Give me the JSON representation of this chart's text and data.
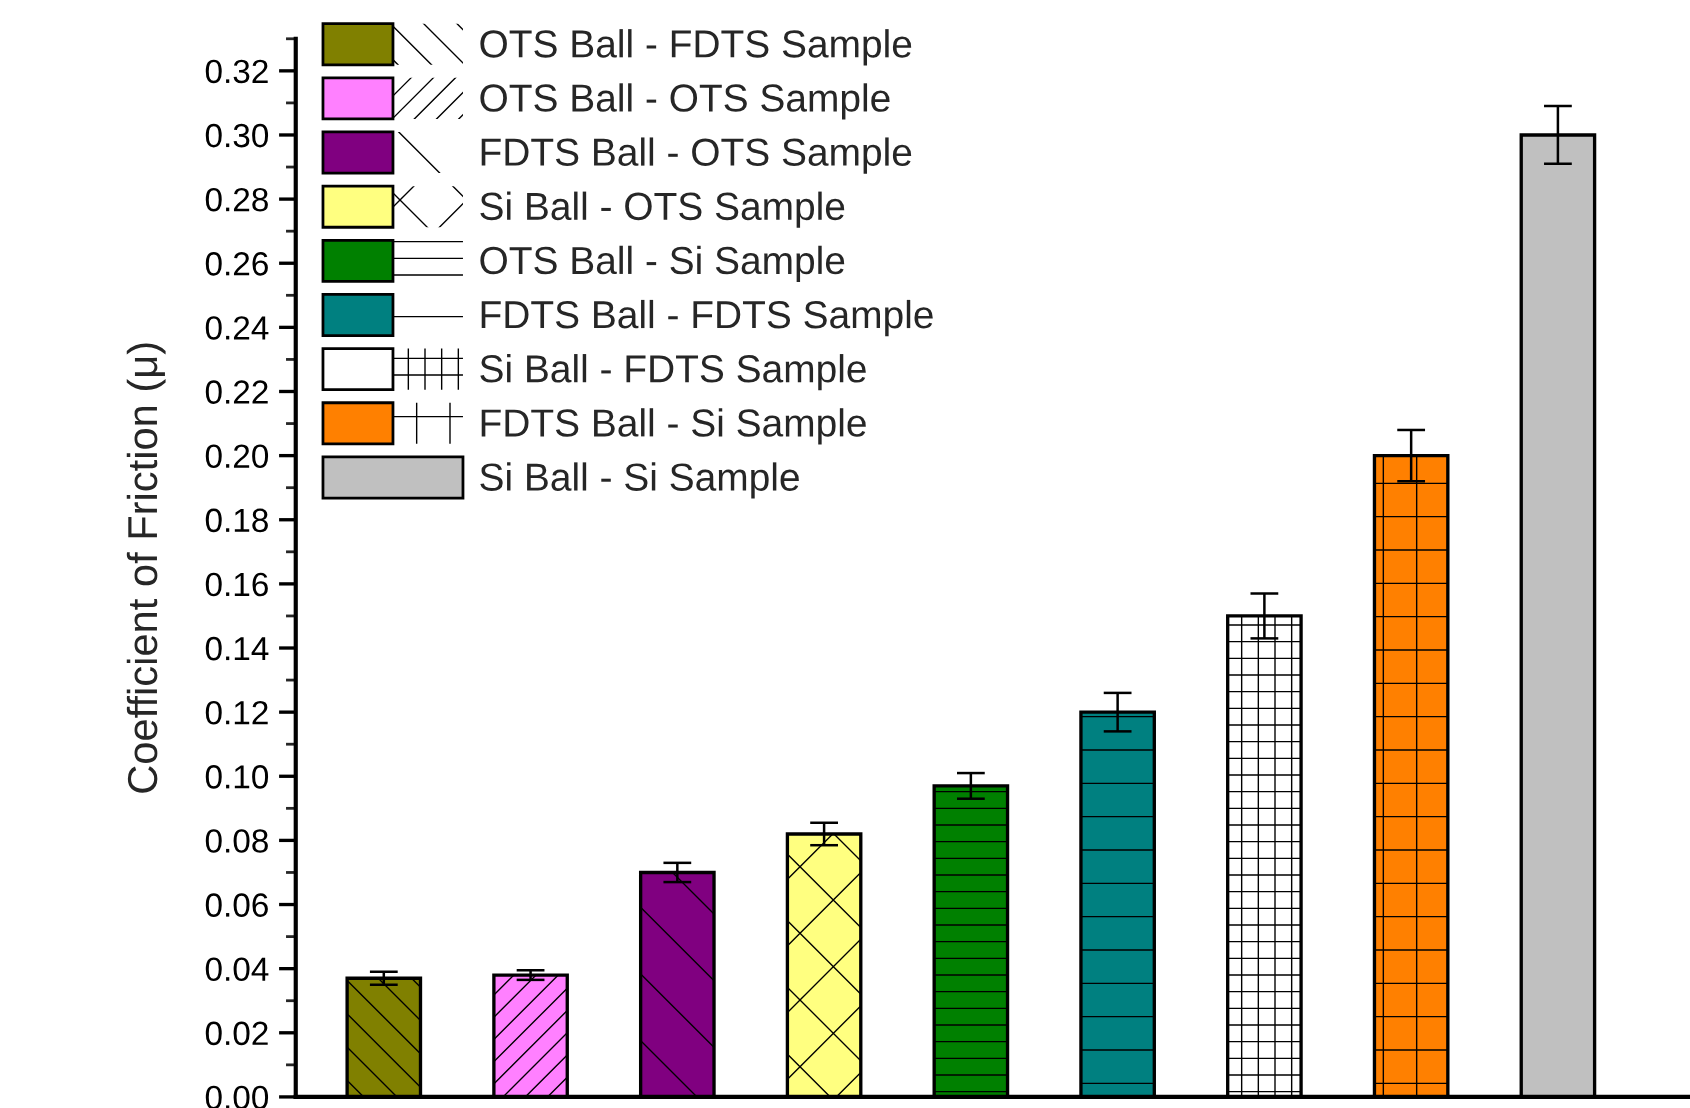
{
  "chart_data": {
    "type": "bar",
    "ylabel": "Coefficient of Friction (μ)",
    "categories": [
      null,
      null,
      null,
      null,
      null,
      null,
      null,
      null,
      null
    ],
    "series": [
      {
        "name": "OTS Ball - FDTS Sample",
        "color": "#808000",
        "values": [
          0.037,
          null,
          null,
          null,
          null,
          null,
          null,
          null,
          null
        ],
        "errors": [
          0.002,
          null,
          null,
          null,
          null,
          null,
          null,
          null,
          null
        ]
      },
      {
        "name": "OTS Ball - OTS Sample",
        "color": "#ff80ff",
        "values": [
          null,
          0.038,
          null,
          null,
          null,
          null,
          null,
          null,
          null
        ],
        "errors": [
          null,
          0.0015,
          null,
          null,
          null,
          null,
          null,
          null,
          null
        ]
      },
      {
        "name": "FDTS Ball - OTS Sample",
        "color": "#800080",
        "values": [
          null,
          null,
          0.07,
          null,
          null,
          null,
          null,
          null,
          null
        ],
        "errors": [
          null,
          null,
          0.003,
          null,
          null,
          null,
          null,
          null,
          null
        ]
      },
      {
        "name": "Si Ball - OTS Sample",
        "color": "#ffff80",
        "values": [
          null,
          null,
          null,
          0.082,
          null,
          null,
          null,
          null,
          null
        ],
        "errors": [
          null,
          null,
          null,
          0.0035,
          null,
          null,
          null,
          null,
          null
        ]
      },
      {
        "name": "OTS Ball - Si Sample",
        "color": "#008000",
        "values": [
          null,
          null,
          null,
          null,
          0.097,
          null,
          null,
          null,
          null
        ],
        "errors": [
          null,
          null,
          null,
          null,
          0.004,
          null,
          null,
          null,
          null
        ]
      },
      {
        "name": "FDTS Ball - FDTS Sample",
        "color": "#008080",
        "values": [
          null,
          null,
          null,
          null,
          null,
          0.12,
          null,
          null,
          null
        ],
        "errors": [
          null,
          null,
          null,
          null,
          null,
          0.006,
          null,
          null,
          null
        ]
      },
      {
        "name": "Si Ball - FDTS Sample",
        "color": "#ffffff",
        "values": [
          null,
          null,
          null,
          null,
          null,
          null,
          0.15,
          null,
          null
        ],
        "errors": [
          null,
          null,
          null,
          null,
          null,
          null,
          0.007,
          null,
          null
        ]
      },
      {
        "name": "FDTS Ball - Si Sample",
        "color": "#ff8000",
        "values": [
          null,
          null,
          null,
          null,
          null,
          null,
          null,
          0.2,
          null
        ],
        "errors": [
          null,
          null,
          null,
          null,
          null,
          null,
          null,
          0.008,
          null
        ]
      },
      {
        "name": "Si Ball - Si Sample",
        "color": "#c0c0c0",
        "values": [
          null,
          null,
          null,
          null,
          null,
          null,
          null,
          null,
          0.3
        ],
        "errors": [
          null,
          null,
          null,
          null,
          null,
          null,
          null,
          null,
          0.009
        ]
      }
    ],
    "ylim": [
      0,
      0.33
    ],
    "yticks": [
      {
        "value": 0,
        "label": "0.00"
      },
      {
        "value": 0.02,
        "label": "0.02"
      },
      {
        "value": 0.04,
        "label": "0.04"
      },
      {
        "value": 0.06,
        "label": "0.06"
      },
      {
        "value": 0.08,
        "label": "0.08"
      },
      {
        "value": 0.1,
        "label": "0.10"
      },
      {
        "value": 0.12,
        "label": "0.12"
      },
      {
        "value": 0.14,
        "label": "0.14"
      },
      {
        "value": 0.16,
        "label": "0.16"
      },
      {
        "value": 0.18,
        "label": "0.18"
      },
      {
        "value": 0.2,
        "label": "0.20"
      },
      {
        "value": 0.22,
        "label": "0.22"
      },
      {
        "value": 0.24,
        "label": "0.24"
      },
      {
        "value": 0.26,
        "label": "0.26"
      },
      {
        "value": 0.28,
        "label": "0.28"
      },
      {
        "value": 0.3,
        "label": "0.30"
      },
      {
        "value": 0.32,
        "label": "0.32"
      }
    ],
    "grid": false,
    "legend": "top left"
  }
}
